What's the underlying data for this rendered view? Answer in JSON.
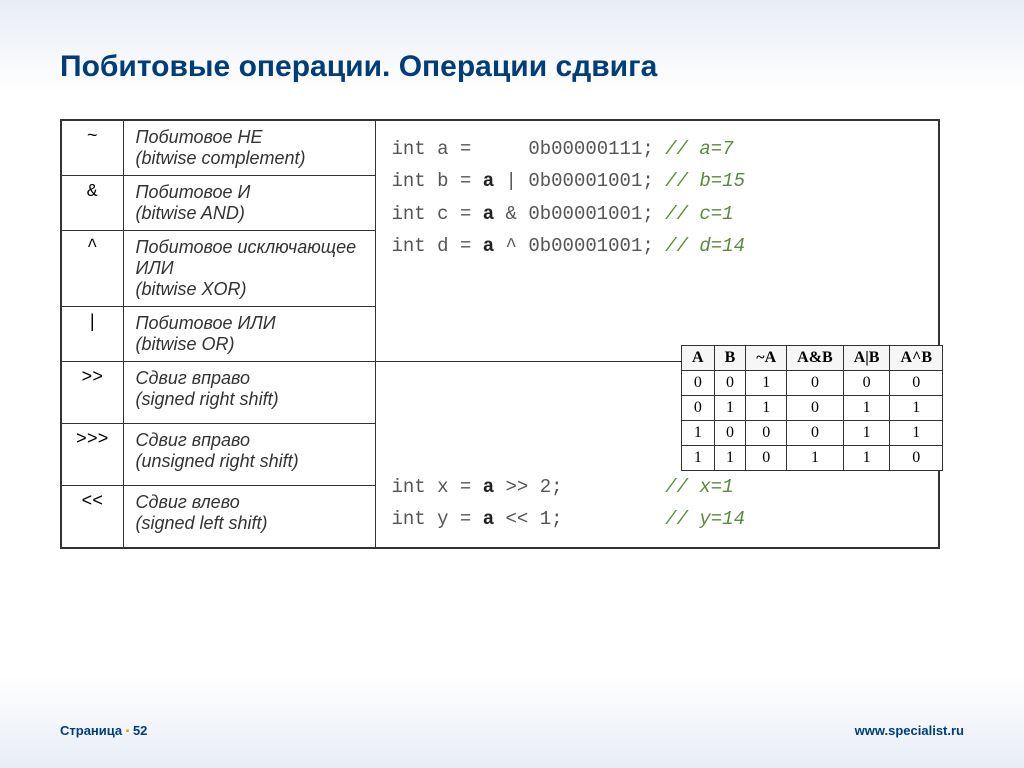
{
  "title": "Побитовые операции. Операции сдвига",
  "operators": [
    {
      "sym": "~",
      "desc": "Побитовое НЕ\n(bitwise complement)"
    },
    {
      "sym": "&",
      "desc": "Побитовое И\n(bitwise AND)"
    },
    {
      "sym": "^",
      "desc": "Побитовое исключающее ИЛИ\n(bitwise XOR)"
    },
    {
      "sym": "|",
      "desc": "Побитовое ИЛИ\n(bitwise OR)"
    },
    {
      "sym": ">>",
      "desc": "Сдвиг вправо\n(signed right shift)"
    },
    {
      "sym": ">>>",
      "desc": "Сдвиг вправо\n(unsigned right shift)"
    },
    {
      "sym": "<<",
      "desc": "Сдвиг влево\n(signed left shift)"
    }
  ],
  "code1": [
    {
      "pre": "int a =     0b00000111;",
      "comment": " // a=7"
    },
    {
      "pre": "int b = a | 0b00001001;",
      "comment": " // b=15"
    },
    {
      "pre": "int c = a & 0b00001001;",
      "comment": " // c=1"
    },
    {
      "pre": "int d = a ^ 0b00001001;",
      "comment": " // d=14"
    }
  ],
  "code2": [
    {
      "pre": "int x = a >> 2;        ",
      "comment": " // x=1"
    },
    {
      "pre": "int y = a << 1;        ",
      "comment": " // y=14"
    }
  ],
  "truth": {
    "headers": [
      "A",
      "B",
      "~A",
      "A&B",
      "A|B",
      "A^B"
    ],
    "rows": [
      [
        0,
        0,
        1,
        0,
        0,
        0
      ],
      [
        0,
        1,
        1,
        0,
        1,
        1
      ],
      [
        1,
        0,
        0,
        0,
        1,
        1
      ],
      [
        1,
        1,
        0,
        1,
        1,
        0
      ]
    ]
  },
  "footer": {
    "page_label": "Страница",
    "page_num": "52",
    "url": "www.specialist.ru"
  },
  "colors": {
    "title": "#003d7a",
    "comment": "#5a8a3a",
    "border": "#333333"
  }
}
